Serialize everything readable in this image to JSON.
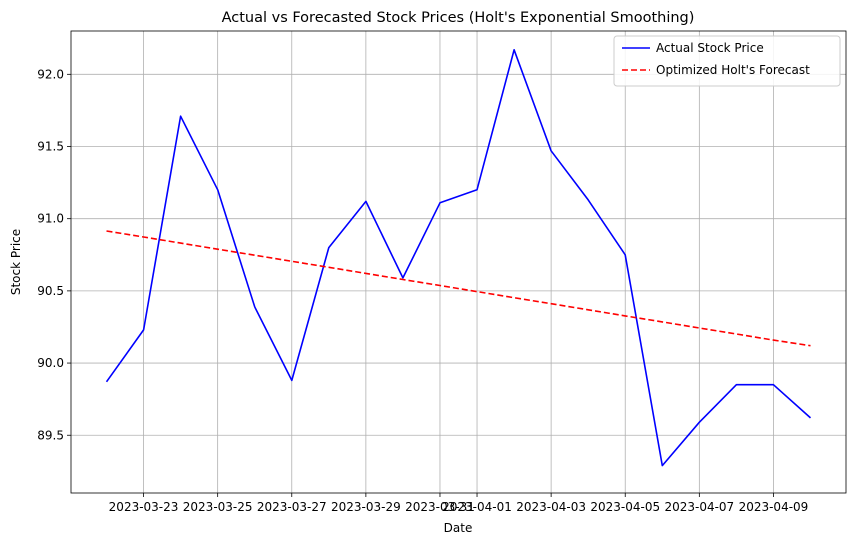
{
  "chart_data": {
    "type": "line",
    "title": "Actual vs Forecasted Stock Prices (Holt's Exponential Smoothing)",
    "xlabel": "Date",
    "ylabel": "Stock Price",
    "x": [
      "2023-03-22",
      "2023-03-23",
      "2023-03-24",
      "2023-03-25",
      "2023-03-26",
      "2023-03-27",
      "2023-03-28",
      "2023-03-29",
      "2023-03-30",
      "2023-03-31",
      "2023-04-01",
      "2023-04-02",
      "2023-04-03",
      "2023-04-04",
      "2023-04-05",
      "2023-04-06",
      "2023-04-07",
      "2023-04-08",
      "2023-04-09",
      "2023-04-10"
    ],
    "xlim": [
      "2023-03-21T01:00",
      "2023-04-10T23:00"
    ],
    "xticks": [
      "2023-03-23",
      "2023-03-25",
      "2023-03-27",
      "2023-03-29",
      "2023-03-31",
      "2023-04-01",
      "2023-04-03",
      "2023-04-05",
      "2023-04-07",
      "2023-04-09"
    ],
    "xtick_labels": [
      "2023-03-23",
      "2023-03-25",
      "2023-03-27",
      "2023-03-29",
      "2023-03-31",
      "2023-04-01",
      "2023-04-03",
      "2023-04-05",
      "2023-04-07",
      "2023-04-09"
    ],
    "ylim": [
      89.1,
      92.3
    ],
    "yticks": [
      89.5,
      90.0,
      90.5,
      91.0,
      91.5,
      92.0
    ],
    "ytick_labels": [
      "89.5",
      "90.0",
      "90.5",
      "91.0",
      "91.5",
      "92.0"
    ],
    "grid": true,
    "legend_position": "upper right",
    "series": [
      {
        "name": "Actual Stock Price",
        "color": "#0000ff",
        "style": "solid",
        "values": [
          89.87,
          90.23,
          91.71,
          91.2,
          90.39,
          89.88,
          90.8,
          91.12,
          90.59,
          91.11,
          91.2,
          92.17,
          91.47,
          91.13,
          90.75,
          89.29,
          89.59,
          89.85,
          89.85,
          89.62
        ]
      },
      {
        "name": "Optimized Holt's Forecast",
        "color": "#ff0000",
        "style": "dashed",
        "values": [
          90.915,
          90.873,
          90.831,
          90.789,
          90.747,
          90.705,
          90.663,
          90.621,
          90.579,
          90.537,
          90.495,
          90.453,
          90.411,
          90.369,
          90.327,
          90.285,
          90.243,
          90.201,
          90.159,
          90.12
        ]
      }
    ]
  }
}
